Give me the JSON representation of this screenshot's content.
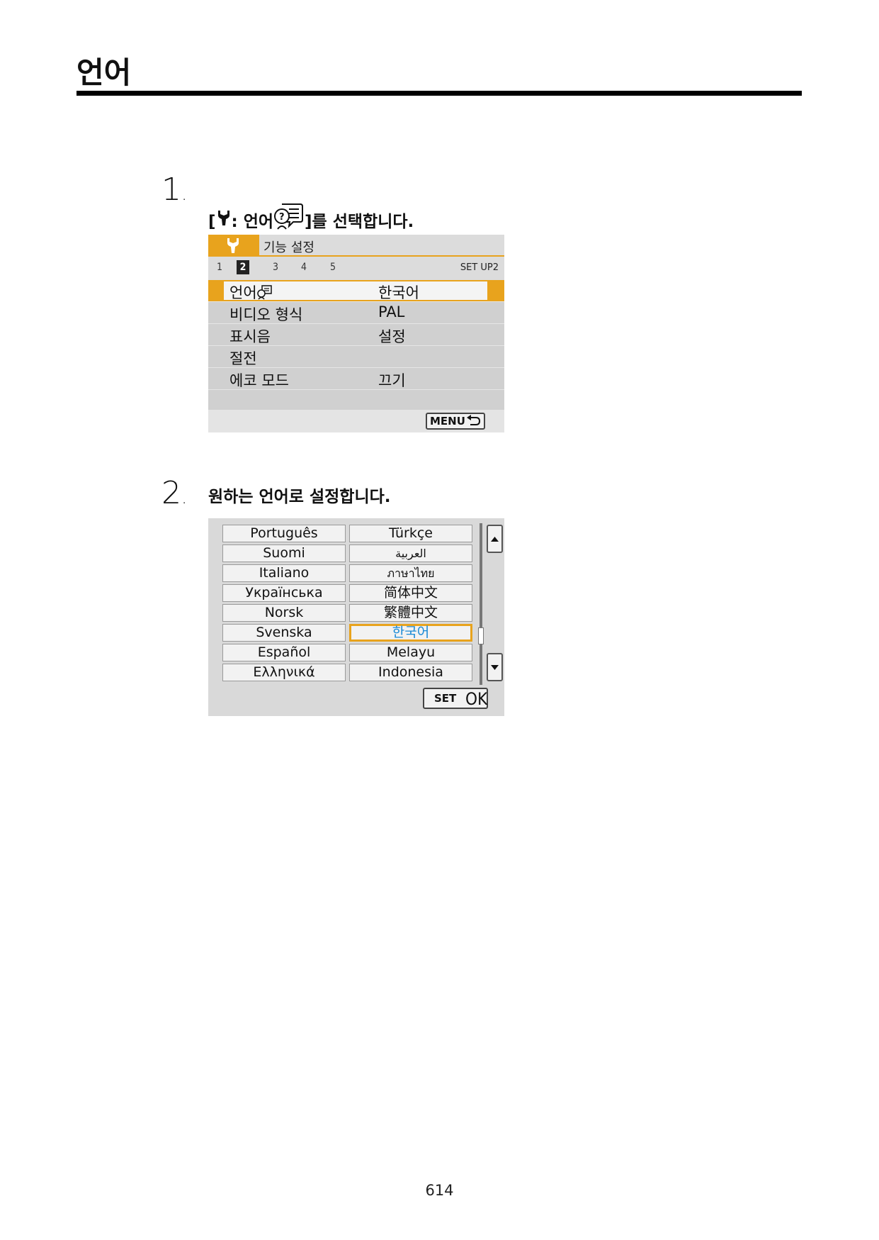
{
  "page": {
    "title": "언어",
    "page_number": "614"
  },
  "step1": {
    "number": "1",
    "text_prefix": "[",
    "text_mid": ": 언어",
    "text_suffix": "]를 선택합니다."
  },
  "step2": {
    "number": "2",
    "text": "원하는 언어로 설정합니다."
  },
  "screen1": {
    "tab_title": "기능 설정",
    "subtabs": [
      "1",
      "2",
      "3",
      "4",
      "5"
    ],
    "active_subtab": "2",
    "setup_label": "SET UP2",
    "rows": [
      {
        "label": "언어",
        "value": "한국어",
        "selected": true
      },
      {
        "label": "비디오 형식",
        "value": "PAL"
      },
      {
        "label": "표시음",
        "value": "설정"
      },
      {
        "label": "절전",
        "value": ""
      },
      {
        "label": "에코 모드",
        "value": "끄기"
      }
    ],
    "menu_button": "MENU"
  },
  "screen2": {
    "left_column": [
      "Português",
      "Suomi",
      "Italiano",
      "Українська",
      "Norsk",
      "Svenska",
      "Español",
      "Ελληνικά"
    ],
    "right_column": [
      "Türkçe",
      "العربية",
      "ภาษาไทย",
      "简体中文",
      "繁體中文",
      "한국어",
      "Melayu",
      "Indonesia"
    ],
    "selected": "한국어",
    "set_label": "SET",
    "ok_label": "OK"
  }
}
